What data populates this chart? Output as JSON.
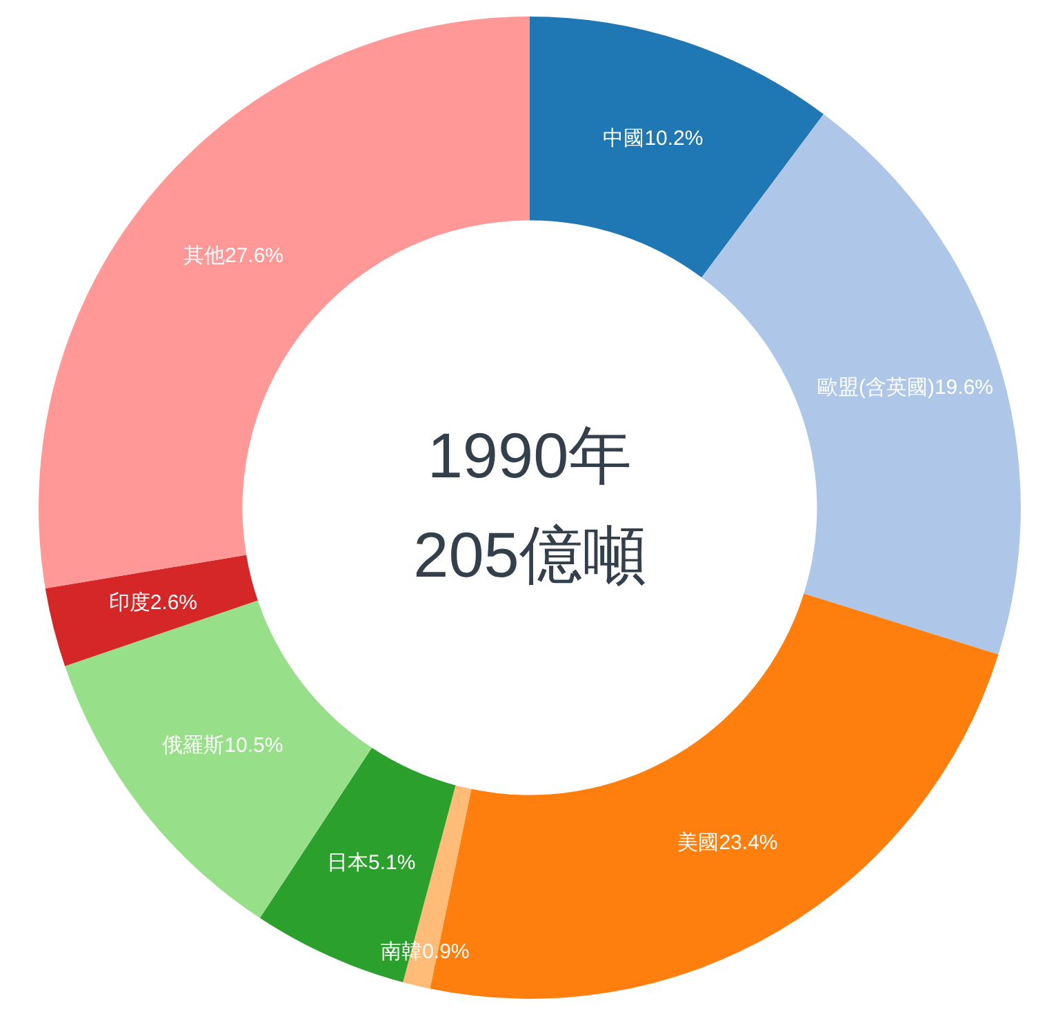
{
  "chart_data": {
    "type": "donut",
    "title": "1990年",
    "subtitle": "205億噸",
    "categories": [
      "中國",
      "歐盟(含英國)",
      "美國",
      "南韓",
      "日本",
      "俄羅斯",
      "印度",
      "其他"
    ],
    "values": [
      10.2,
      19.6,
      23.4,
      0.9,
      5.1,
      10.5,
      2.6,
      27.6
    ],
    "colors": [
      "#1f77b4",
      "#aec7e8",
      "#ff7f0e",
      "#ffbb78",
      "#2ca02c",
      "#98df8a",
      "#d62728",
      "#ff9896"
    ],
    "value_labels": [
      "10.2%",
      "19.6%",
      "23.4%",
      "0.9%",
      "5.1%",
      "10.5%",
      "2.6%",
      "27.6%"
    ]
  }
}
